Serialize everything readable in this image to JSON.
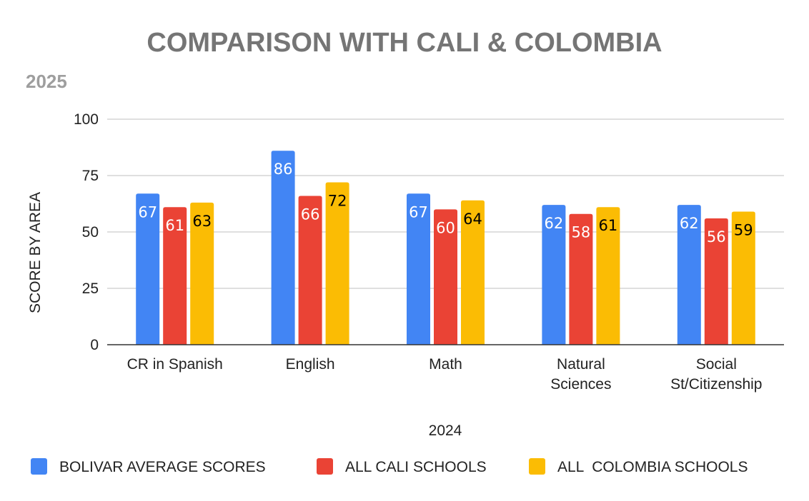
{
  "chart_data": {
    "type": "bar",
    "title": "COMPARISON WITH CALI & COLOMBIA",
    "subtitle": "2025",
    "xlabel": "2024",
    "ylabel": "SCORE BY AREA",
    "ylim": [
      0,
      100
    ],
    "yticks": [
      0,
      25,
      50,
      75,
      100
    ],
    "grid": true,
    "legend_position": "bottom",
    "categories": [
      "CR in Spanish",
      "English",
      "Math",
      "Natural Sciences",
      "Social St/Citizenship"
    ],
    "series": [
      {
        "name": "BOLIVAR AVERAGE SCORES",
        "color": "#4285f4",
        "label_color": "#ffffff",
        "values": [
          67,
          86,
          67,
          62,
          62
        ]
      },
      {
        "name": "ALL CALI SCHOOLS",
        "color": "#ea4335",
        "label_color": "#ffffff",
        "values": [
          61,
          66,
          60,
          58,
          56
        ]
      },
      {
        "name": "ALL  COLOMBIA SCHOOLS",
        "color": "#fbbc04",
        "label_color": "#000000",
        "values": [
          63,
          72,
          64,
          61,
          59
        ]
      }
    ]
  }
}
